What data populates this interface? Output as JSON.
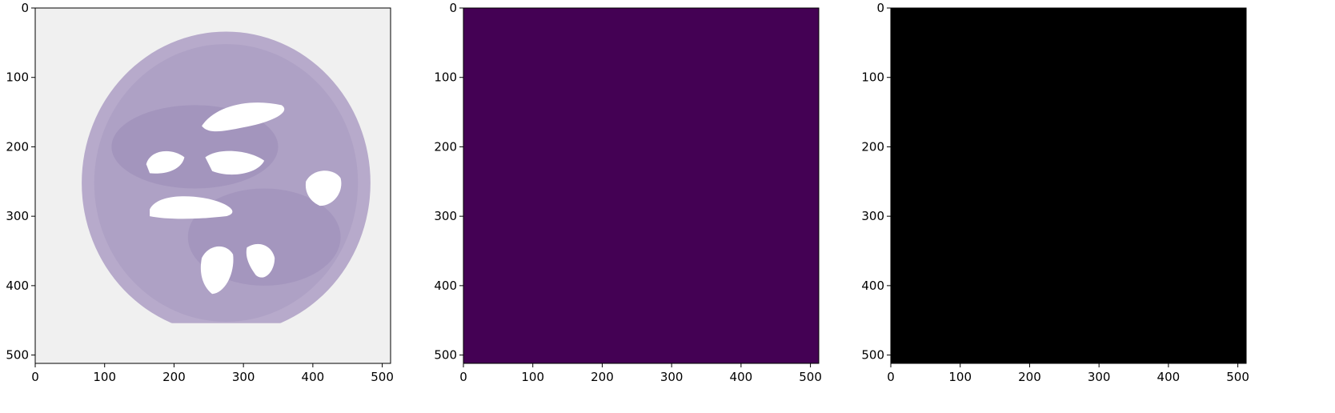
{
  "figure": {
    "panels": [
      {
        "name": "tissue-image",
        "description_id": "he",
        "xlim": [
          0,
          512
        ],
        "ylim": [
          512,
          0
        ]
      },
      {
        "name": "probability-map",
        "description_id": "prob",
        "xlim": [
          0,
          512
        ],
        "ylim": [
          512,
          0
        ]
      },
      {
        "name": "binary-mask",
        "description_id": "mask",
        "xlim": [
          0,
          512
        ],
        "ylim": [
          512,
          0
        ]
      }
    ],
    "xticks": [
      0,
      100,
      200,
      300,
      400,
      500
    ],
    "yticks": [
      0,
      100,
      200,
      300,
      400,
      500
    ],
    "xtick_labels": [
      "0",
      "100",
      "200",
      "300",
      "400",
      "500"
    ],
    "ytick_labels": [
      "0",
      "100",
      "200",
      "300",
      "400",
      "500"
    ],
    "colors": {
      "tissue_fill": "#b7aacb",
      "tissue_dark": "#8f7fb0",
      "tissue_background": "#f0f0f0",
      "lumen": "#ffffff",
      "viridis_low": "#440154",
      "viridis_mid": "#21918c",
      "viridis_high": "#fde725",
      "mask_background": "#000000",
      "mask_fill": "#ffffff"
    }
  }
}
